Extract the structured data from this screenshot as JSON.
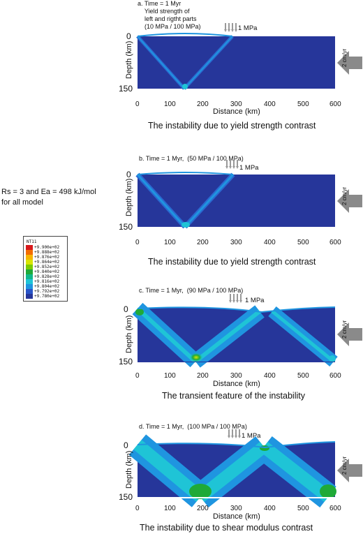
{
  "params": {
    "line1": "Rs = 3 and Ea = 498 kJ/mol",
    "line2": "for all model"
  },
  "legend": {
    "title": "NT11",
    "entries": [
      {
        "label": "+9.900e+02",
        "color": "#d7191c"
      },
      {
        "label": "+9.888e+02",
        "color": "#f46d00"
      },
      {
        "label": "+9.876e+02",
        "color": "#f7b500"
      },
      {
        "label": "+9.864e+02",
        "color": "#d9e400"
      },
      {
        "label": "+9.852e+02",
        "color": "#7ccc00"
      },
      {
        "label": "+9.840e+02",
        "color": "#1faa38"
      },
      {
        "label": "+9.828e+02",
        "color": "#10b88a"
      },
      {
        "label": "+9.816e+02",
        "color": "#1fc4d6"
      },
      {
        "label": "+9.804e+02",
        "color": "#1f95e0"
      },
      {
        "label": "+9.792e+02",
        "color": "#2a55c8"
      },
      {
        "label": "+9.780e+02",
        "color": "#26369a"
      }
    ]
  },
  "axes": {
    "x_label": "Distance (km)",
    "y_label": "Depth (km)",
    "x_ticks": [
      "0",
      "100",
      "200",
      "300",
      "400",
      "500",
      "600"
    ],
    "y_ticks": [
      "0",
      "150"
    ],
    "load_label": "1 MPa",
    "velocity_label": "2 cm/yr"
  },
  "panels": [
    {
      "id": "a",
      "title": "a. Time = 1 Myr\n    Yield strength of\n    left and rigtht parts\n    (10 MPa / 100 MPa)",
      "caption": "The instability due to yield strength contrast"
    },
    {
      "id": "b",
      "title": "b. Time = 1 Myr,  (50 MPa / 100 MPa)",
      "caption": "The instability due to yield strength contrast"
    },
    {
      "id": "c",
      "title": "c. Time = 1 Myr,  (90 MPa / 100 MPa)",
      "caption": "The transient feature of the instability"
    },
    {
      "id": "d",
      "title": "d. Time = 1 Myr,  (100 MPa / 100 MPa)",
      "caption": "The instability due to shear modulus contrast"
    }
  ]
}
